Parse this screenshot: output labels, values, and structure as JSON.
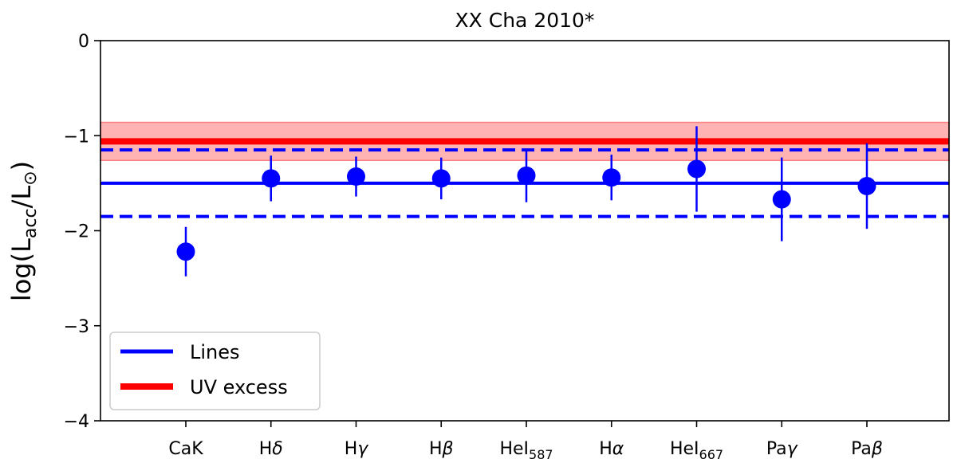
{
  "chart_data": {
    "type": "scatter",
    "title": "XX Cha 2010*",
    "ylabel": {
      "main": "log(L",
      "sub1": "acc",
      "mid": "/L",
      "sub2": "⊙",
      "end": ")"
    },
    "ylim": [
      -4,
      0
    ],
    "yticks": [
      0,
      -1,
      -2,
      -3,
      -4
    ],
    "ytick_labels": [
      "0",
      "−1",
      "−2",
      "−3",
      "−4"
    ],
    "categories": [
      {
        "base": "CaK",
        "sym": "",
        "sub": ""
      },
      {
        "base": "H",
        "sym": "δ",
        "sub": ""
      },
      {
        "base": "H",
        "sym": "γ",
        "sub": ""
      },
      {
        "base": "H",
        "sym": "β",
        "sub": ""
      },
      {
        "base": "HeI",
        "sym": "",
        "sub": "587"
      },
      {
        "base": "H",
        "sym": "α",
        "sub": ""
      },
      {
        "base": "HeI",
        "sym": "",
        "sub": "667"
      },
      {
        "base": "Pa",
        "sym": "γ",
        "sub": ""
      },
      {
        "base": "Pa",
        "sym": "β",
        "sub": ""
      }
    ],
    "values": [
      -2.22,
      -1.45,
      -1.43,
      -1.45,
      -1.42,
      -1.44,
      -1.35,
      -1.67,
      -1.53
    ],
    "errors": [
      0.26,
      0.24,
      0.21,
      0.22,
      0.28,
      0.24,
      0.45,
      0.44,
      0.45
    ],
    "lines_mean": -1.5,
    "lines_band": [
      -1.85,
      -1.15
    ],
    "uv_excess": -1.06,
    "uv_band": [
      -1.26,
      -0.86
    ],
    "legend": [
      "Lines",
      "UV excess"
    ],
    "legend_position": "lower-left",
    "colors": {
      "lines": "#0000ff",
      "uv": "#ff0000",
      "uv_band": "#ffb3b3",
      "uv_band_edge": "#ff7f7f"
    },
    "grid": false
  }
}
